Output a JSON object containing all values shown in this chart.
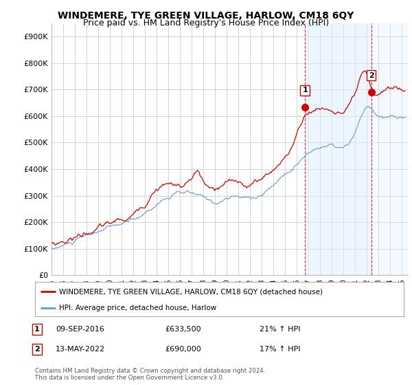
{
  "title": "WINDEMERE, TYE GREEN VILLAGE, HARLOW, CM18 6QY",
  "subtitle": "Price paid vs. HM Land Registry's House Price Index (HPI)",
  "ylabel_ticks": [
    "£0",
    "£100K",
    "£200K",
    "£300K",
    "£400K",
    "£500K",
    "£600K",
    "£700K",
    "£800K",
    "£900K"
  ],
  "ytick_values": [
    0,
    100000,
    200000,
    300000,
    400000,
    500000,
    600000,
    700000,
    800000,
    900000
  ],
  "ylim": [
    0,
    950000
  ],
  "xlim_start": 1995.0,
  "xlim_end": 2025.5,
  "red_color": "#cc0000",
  "blue_color": "#6699cc",
  "blue_fill_color": "#ddeeff",
  "marker1_date": 2016.69,
  "marker1_value": 633500,
  "marker1_label": "1",
  "marker2_date": 2022.36,
  "marker2_value": 690000,
  "marker2_label": "2",
  "legend_label_red": "WINDEMERE, TYE GREEN VILLAGE, HARLOW, CM18 6QY (detached house)",
  "legend_label_blue": "HPI: Average price, detached house, Harlow",
  "annotation1_date": "09-SEP-2016",
  "annotation1_price": "£633,500",
  "annotation1_hpi": "21% ↑ HPI",
  "annotation2_date": "13-MAY-2022",
  "annotation2_price": "£690,000",
  "annotation2_hpi": "17% ↑ HPI",
  "footer": "Contains HM Land Registry data © Crown copyright and database right 2024.\nThis data is licensed under the Open Government Licence v3.0.",
  "background_color": "#ffffff",
  "grid_color": "#cccccc",
  "title_fontsize": 10,
  "subtitle_fontsize": 9
}
